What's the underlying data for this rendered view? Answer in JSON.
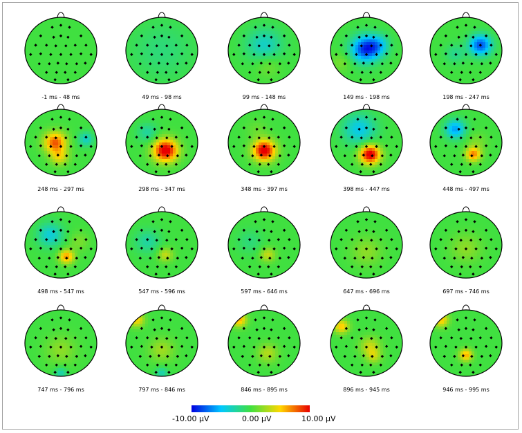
{
  "colors": {
    "negative": "#1010e0",
    "zero": "#40e040",
    "positive": "#e81010",
    "electrode": "#000000"
  },
  "scale": {
    "min_label": "-10.00 μV",
    "mid_label": "0.00 μV",
    "max_label": "10.00 μV",
    "min": -10,
    "max": 10
  },
  "maps": [
    {
      "label": "-1 ms - 48 ms",
      "blobs": []
    },
    {
      "label": "49 ms - 98 ms",
      "blobs": [
        {
          "u": 0.5,
          "v": 0.5,
          "a": -1.5,
          "s": 0.6
        }
      ]
    },
    {
      "label": "99 ms - 148 ms",
      "blobs": [
        {
          "u": 0.5,
          "v": 0.42,
          "a": -3.5,
          "s": 0.35
        },
        {
          "u": 0.55,
          "v": 0.72,
          "a": 1.5,
          "s": 0.25
        }
      ]
    },
    {
      "label": "149 ms - 198 ms",
      "blobs": [
        {
          "u": 0.48,
          "v": 0.48,
          "a": -8.5,
          "s": 0.28
        },
        {
          "u": 0.66,
          "v": 0.42,
          "a": -4,
          "s": 0.22
        },
        {
          "u": 0.15,
          "v": 0.68,
          "a": 1.5,
          "s": 0.2
        }
      ]
    },
    {
      "label": "198 ms - 247 ms",
      "blobs": [
        {
          "u": 0.7,
          "v": 0.42,
          "a": -8,
          "s": 0.22
        },
        {
          "u": 0.35,
          "v": 0.55,
          "a": -2,
          "s": 0.2
        }
      ]
    },
    {
      "label": "248 ms - 297 ms",
      "blobs": [
        {
          "u": 0.42,
          "v": 0.5,
          "a": 8,
          "s": 0.22
        },
        {
          "u": 0.48,
          "v": 0.72,
          "a": 4,
          "s": 0.18
        },
        {
          "u": 0.85,
          "v": 0.45,
          "a": -3.5,
          "s": 0.15
        }
      ]
    },
    {
      "label": "298 ms - 347 ms",
      "blobs": [
        {
          "u": 0.55,
          "v": 0.62,
          "a": 11,
          "s": 0.24
        },
        {
          "u": 0.3,
          "v": 0.35,
          "a": -2.5,
          "s": 0.2
        }
      ]
    },
    {
      "label": "348 ms - 397 ms",
      "blobs": [
        {
          "u": 0.5,
          "v": 0.62,
          "a": 11,
          "s": 0.22
        },
        {
          "u": 0.4,
          "v": 0.3,
          "a": 1,
          "s": 0.2
        }
      ]
    },
    {
      "label": "398 ms - 447 ms",
      "blobs": [
        {
          "u": 0.55,
          "v": 0.68,
          "a": 11,
          "s": 0.2
        },
        {
          "u": 0.4,
          "v": 0.3,
          "a": -4.5,
          "s": 0.32
        }
      ]
    },
    {
      "label": "448 ms - 497 ms",
      "blobs": [
        {
          "u": 0.35,
          "v": 0.3,
          "a": -6,
          "s": 0.2
        },
        {
          "u": 0.6,
          "v": 0.68,
          "a": 7,
          "s": 0.15
        },
        {
          "u": 0.65,
          "v": 0.5,
          "a": 1.5,
          "s": 0.2
        }
      ]
    },
    {
      "label": "498 ms - 547 ms",
      "blobs": [
        {
          "u": 0.35,
          "v": 0.35,
          "a": -4,
          "s": 0.25
        },
        {
          "u": 0.58,
          "v": 0.68,
          "a": 6.5,
          "s": 0.15
        },
        {
          "u": 0.75,
          "v": 0.45,
          "a": 1.5,
          "s": 0.2
        }
      ]
    },
    {
      "label": "547 ms - 596 ms",
      "blobs": [
        {
          "u": 0.55,
          "v": 0.65,
          "a": 3.5,
          "s": 0.15
        },
        {
          "u": 0.3,
          "v": 0.45,
          "a": -2.5,
          "s": 0.25
        }
      ]
    },
    {
      "label": "597 ms - 646 ms",
      "blobs": [
        {
          "u": 0.55,
          "v": 0.65,
          "a": 3.5,
          "s": 0.15
        },
        {
          "u": 0.3,
          "v": 0.45,
          "a": -1.5,
          "s": 0.25
        }
      ]
    },
    {
      "label": "647 ms - 696 ms",
      "blobs": [
        {
          "u": 0.5,
          "v": 0.6,
          "a": 2,
          "s": 0.3
        }
      ]
    },
    {
      "label": "697 ms - 746 ms",
      "blobs": [
        {
          "u": 0.5,
          "v": 0.55,
          "a": 2,
          "s": 0.3
        }
      ]
    },
    {
      "label": "747 ms - 796 ms",
      "blobs": [
        {
          "u": 0.5,
          "v": 0.6,
          "a": 2,
          "s": 0.3
        },
        {
          "u": 0.5,
          "v": 0.95,
          "a": -3,
          "s": 0.12
        }
      ]
    },
    {
      "label": "797 ms - 846 ms",
      "blobs": [
        {
          "u": 0.15,
          "v": 0.15,
          "a": 5,
          "s": 0.15
        },
        {
          "u": 0.5,
          "v": 0.6,
          "a": 2.5,
          "s": 0.25
        },
        {
          "u": 0.5,
          "v": 0.95,
          "a": -3,
          "s": 0.12
        }
      ]
    },
    {
      "label": "846 ms - 895 ms",
      "blobs": [
        {
          "u": 0.15,
          "v": 0.15,
          "a": 6,
          "s": 0.15
        },
        {
          "u": 0.55,
          "v": 0.65,
          "a": 3,
          "s": 0.2
        }
      ]
    },
    {
      "label": "896 ms - 945 ms",
      "blobs": [
        {
          "u": 0.15,
          "v": 0.25,
          "a": 5.5,
          "s": 0.15
        },
        {
          "u": 0.55,
          "v": 0.55,
          "a": 3.5,
          "s": 0.2
        },
        {
          "u": 0.6,
          "v": 0.7,
          "a": 3,
          "s": 0.15
        }
      ]
    },
    {
      "label": "946 ms - 995 ms",
      "blobs": [
        {
          "u": 0.15,
          "v": 0.15,
          "a": 5.5,
          "s": 0.15
        },
        {
          "u": 0.5,
          "v": 0.68,
          "a": 6,
          "s": 0.13
        }
      ]
    }
  ]
}
